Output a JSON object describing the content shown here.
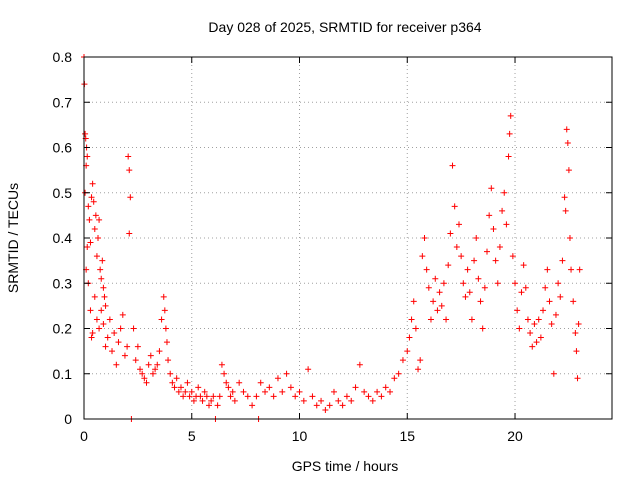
{
  "chart_data": {
    "type": "scatter",
    "title": "Day 028 of 2025, SRMTID for receiver p364",
    "xlabel": "GPS time / hours",
    "ylabel": "SRMTID / TECUs",
    "xlim": [
      0,
      24.5
    ],
    "ylim": [
      0,
      0.8
    ],
    "xticks": [
      0,
      5,
      10,
      15,
      20
    ],
    "xtick_labels": [
      "0",
      "5",
      "10",
      "15",
      "20"
    ],
    "yticks": [
      0,
      0.1,
      0.2,
      0.3,
      0.4,
      0.5,
      0.6,
      0.7,
      0.8
    ],
    "ytick_labels": [
      "0",
      "0.1",
      "0.2",
      "0.3",
      "0.4",
      "0.5",
      "0.6",
      "0.7",
      "0.8"
    ],
    "grid": true,
    "marker": "+",
    "color": "#ff0000",
    "series": [
      {
        "name": "SRMTID",
        "points": [
          [
            0.0,
            0.8
          ],
          [
            0.02,
            0.74
          ],
          [
            0.05,
            0.63
          ],
          [
            0.08,
            0.62
          ],
          [
            0.1,
            0.56
          ],
          [
            0.12,
            0.6
          ],
          [
            0.15,
            0.58
          ],
          [
            0.05,
            0.5
          ],
          [
            0.2,
            0.47
          ],
          [
            0.25,
            0.44
          ],
          [
            0.3,
            0.39
          ],
          [
            0.35,
            0.49
          ],
          [
            0.4,
            0.52
          ],
          [
            0.45,
            0.48
          ],
          [
            0.5,
            0.42
          ],
          [
            0.55,
            0.45
          ],
          [
            0.6,
            0.36
          ],
          [
            0.65,
            0.4
          ],
          [
            0.7,
            0.44
          ],
          [
            0.75,
            0.33
          ],
          [
            0.8,
            0.31
          ],
          [
            0.85,
            0.35
          ],
          [
            0.9,
            0.29
          ],
          [
            0.95,
            0.27
          ],
          [
            1.0,
            0.25
          ],
          [
            0.1,
            0.33
          ],
          [
            0.15,
            0.38
          ],
          [
            0.2,
            0.3
          ],
          [
            0.3,
            0.24
          ],
          [
            0.35,
            0.18
          ],
          [
            0.4,
            0.19
          ],
          [
            0.5,
            0.27
          ],
          [
            0.6,
            0.22
          ],
          [
            0.7,
            0.2
          ],
          [
            0.8,
            0.24
          ],
          [
            0.9,
            0.21
          ],
          [
            1.0,
            0.16
          ],
          [
            1.1,
            0.18
          ],
          [
            1.2,
            0.22
          ],
          [
            1.3,
            0.15
          ],
          [
            1.4,
            0.19
          ],
          [
            1.5,
            0.12
          ],
          [
            1.6,
            0.17
          ],
          [
            1.7,
            0.2
          ],
          [
            1.8,
            0.23
          ],
          [
            1.9,
            0.14
          ],
          [
            2.0,
            0.16
          ],
          [
            2.05,
            0.58
          ],
          [
            2.1,
            0.55
          ],
          [
            2.15,
            0.49
          ],
          [
            2.1,
            0.41
          ],
          [
            2.2,
            0.0
          ],
          [
            2.3,
            0.2
          ],
          [
            2.4,
            0.13
          ],
          [
            2.5,
            0.16
          ],
          [
            2.6,
            0.11
          ],
          [
            2.7,
            0.1
          ],
          [
            2.8,
            0.09
          ],
          [
            2.9,
            0.08
          ],
          [
            3.0,
            0.12
          ],
          [
            3.1,
            0.14
          ],
          [
            3.2,
            0.1
          ],
          [
            3.3,
            0.11
          ],
          [
            3.4,
            0.12
          ],
          [
            3.5,
            0.15
          ],
          [
            3.6,
            0.22
          ],
          [
            3.7,
            0.27
          ],
          [
            3.75,
            0.24
          ],
          [
            3.8,
            0.2
          ],
          [
            3.85,
            0.17
          ],
          [
            3.9,
            0.13
          ],
          [
            4.0,
            0.1
          ],
          [
            4.1,
            0.08
          ],
          [
            4.2,
            0.07
          ],
          [
            4.3,
            0.09
          ],
          [
            4.4,
            0.06
          ],
          [
            4.5,
            0.07
          ],
          [
            4.6,
            0.05
          ],
          [
            4.7,
            0.06
          ],
          [
            4.8,
            0.08
          ],
          [
            4.9,
            0.05
          ],
          [
            5.0,
            0.06
          ],
          [
            5.1,
            0.04
          ],
          [
            5.2,
            0.05
          ],
          [
            5.3,
            0.07
          ],
          [
            5.4,
            0.05
          ],
          [
            5.5,
            0.04
          ],
          [
            5.6,
            0.06
          ],
          [
            5.7,
            0.05
          ],
          [
            5.8,
            0.03
          ],
          [
            5.9,
            0.04
          ],
          [
            6.0,
            0.05
          ],
          [
            6.1,
            0.0
          ],
          [
            6.2,
            0.03
          ],
          [
            6.3,
            0.05
          ],
          [
            6.4,
            0.12
          ],
          [
            6.5,
            0.1
          ],
          [
            6.6,
            0.08
          ],
          [
            6.7,
            0.07
          ],
          [
            6.8,
            0.05
          ],
          [
            6.9,
            0.06
          ],
          [
            7.0,
            0.04
          ],
          [
            7.2,
            0.08
          ],
          [
            7.4,
            0.06
          ],
          [
            7.6,
            0.05
          ],
          [
            7.8,
            0.03
          ],
          [
            8.0,
            0.05
          ],
          [
            8.1,
            0.0
          ],
          [
            8.2,
            0.08
          ],
          [
            8.4,
            0.06
          ],
          [
            8.6,
            0.07
          ],
          [
            8.8,
            0.05
          ],
          [
            9.0,
            0.09
          ],
          [
            9.2,
            0.06
          ],
          [
            9.4,
            0.1
          ],
          [
            9.6,
            0.07
          ],
          [
            9.8,
            0.05
          ],
          [
            10.0,
            0.06
          ],
          [
            10.2,
            0.04
          ],
          [
            10.4,
            0.11
          ],
          [
            10.6,
            0.05
          ],
          [
            10.8,
            0.03
          ],
          [
            11.0,
            0.04
          ],
          [
            11.2,
            0.02
          ],
          [
            11.4,
            0.03
          ],
          [
            11.6,
            0.06
          ],
          [
            11.8,
            0.04
          ],
          [
            12.0,
            0.03
          ],
          [
            12.2,
            0.05
          ],
          [
            12.4,
            0.04
          ],
          [
            12.6,
            0.07
          ],
          [
            12.8,
            0.12
          ],
          [
            13.0,
            0.06
          ],
          [
            13.2,
            0.05
          ],
          [
            13.4,
            0.04
          ],
          [
            13.6,
            0.06
          ],
          [
            13.8,
            0.05
          ],
          [
            14.0,
            0.07
          ],
          [
            14.2,
            0.06
          ],
          [
            14.4,
            0.09
          ],
          [
            14.6,
            0.1
          ],
          [
            14.8,
            0.13
          ],
          [
            15.0,
            0.15
          ],
          [
            15.1,
            0.18
          ],
          [
            15.2,
            0.22
          ],
          [
            15.3,
            0.26
          ],
          [
            15.4,
            0.2
          ],
          [
            15.5,
            0.11
          ],
          [
            15.6,
            0.13
          ],
          [
            15.7,
            0.36
          ],
          [
            15.8,
            0.4
          ],
          [
            15.9,
            0.33
          ],
          [
            16.0,
            0.29
          ],
          [
            16.1,
            0.22
          ],
          [
            16.2,
            0.26
          ],
          [
            16.3,
            0.31
          ],
          [
            16.4,
            0.24
          ],
          [
            16.5,
            0.28
          ],
          [
            16.6,
            0.25
          ],
          [
            16.7,
            0.3
          ],
          [
            16.8,
            0.22
          ],
          [
            16.9,
            0.34
          ],
          [
            17.0,
            0.41
          ],
          [
            17.1,
            0.56
          ],
          [
            17.2,
            0.47
          ],
          [
            17.3,
            0.38
          ],
          [
            17.4,
            0.43
          ],
          [
            17.5,
            0.36
          ],
          [
            17.6,
            0.3
          ],
          [
            17.7,
            0.27
          ],
          [
            17.8,
            0.33
          ],
          [
            17.9,
            0.28
          ],
          [
            18.0,
            0.22
          ],
          [
            18.1,
            0.35
          ],
          [
            18.2,
            0.4
          ],
          [
            18.3,
            0.31
          ],
          [
            18.4,
            0.26
          ],
          [
            18.5,
            0.2
          ],
          [
            18.6,
            0.29
          ],
          [
            18.7,
            0.37
          ],
          [
            18.8,
            0.45
          ],
          [
            18.9,
            0.51
          ],
          [
            19.0,
            0.42
          ],
          [
            19.1,
            0.35
          ],
          [
            19.2,
            0.3
          ],
          [
            19.3,
            0.38
          ],
          [
            19.4,
            0.46
          ],
          [
            19.5,
            0.5
          ],
          [
            19.6,
            0.43
          ],
          [
            19.7,
            0.58
          ],
          [
            19.8,
            0.67
          ],
          [
            19.75,
            0.63
          ],
          [
            19.9,
            0.36
          ],
          [
            20.0,
            0.3
          ],
          [
            20.1,
            0.24
          ],
          [
            20.2,
            0.2
          ],
          [
            20.3,
            0.28
          ],
          [
            20.4,
            0.34
          ],
          [
            20.5,
            0.29
          ],
          [
            20.6,
            0.22
          ],
          [
            20.7,
            0.19
          ],
          [
            20.8,
            0.16
          ],
          [
            20.9,
            0.21
          ],
          [
            21.0,
            0.17
          ],
          [
            21.1,
            0.22
          ],
          [
            21.2,
            0.18
          ],
          [
            21.3,
            0.24
          ],
          [
            21.4,
            0.29
          ],
          [
            21.5,
            0.33
          ],
          [
            21.6,
            0.26
          ],
          [
            21.7,
            0.21
          ],
          [
            21.8,
            0.1
          ],
          [
            21.9,
            0.23
          ],
          [
            22.0,
            0.3
          ],
          [
            22.1,
            0.27
          ],
          [
            22.2,
            0.35
          ],
          [
            22.3,
            0.49
          ],
          [
            22.35,
            0.46
          ],
          [
            22.4,
            0.64
          ],
          [
            22.45,
            0.61
          ],
          [
            22.5,
            0.55
          ],
          [
            22.55,
            0.4
          ],
          [
            22.6,
            0.33
          ],
          [
            22.7,
            0.26
          ],
          [
            22.8,
            0.19
          ],
          [
            22.85,
            0.15
          ],
          [
            22.9,
            0.09
          ],
          [
            22.95,
            0.21
          ],
          [
            23.0,
            0.33
          ]
        ]
      }
    ]
  }
}
